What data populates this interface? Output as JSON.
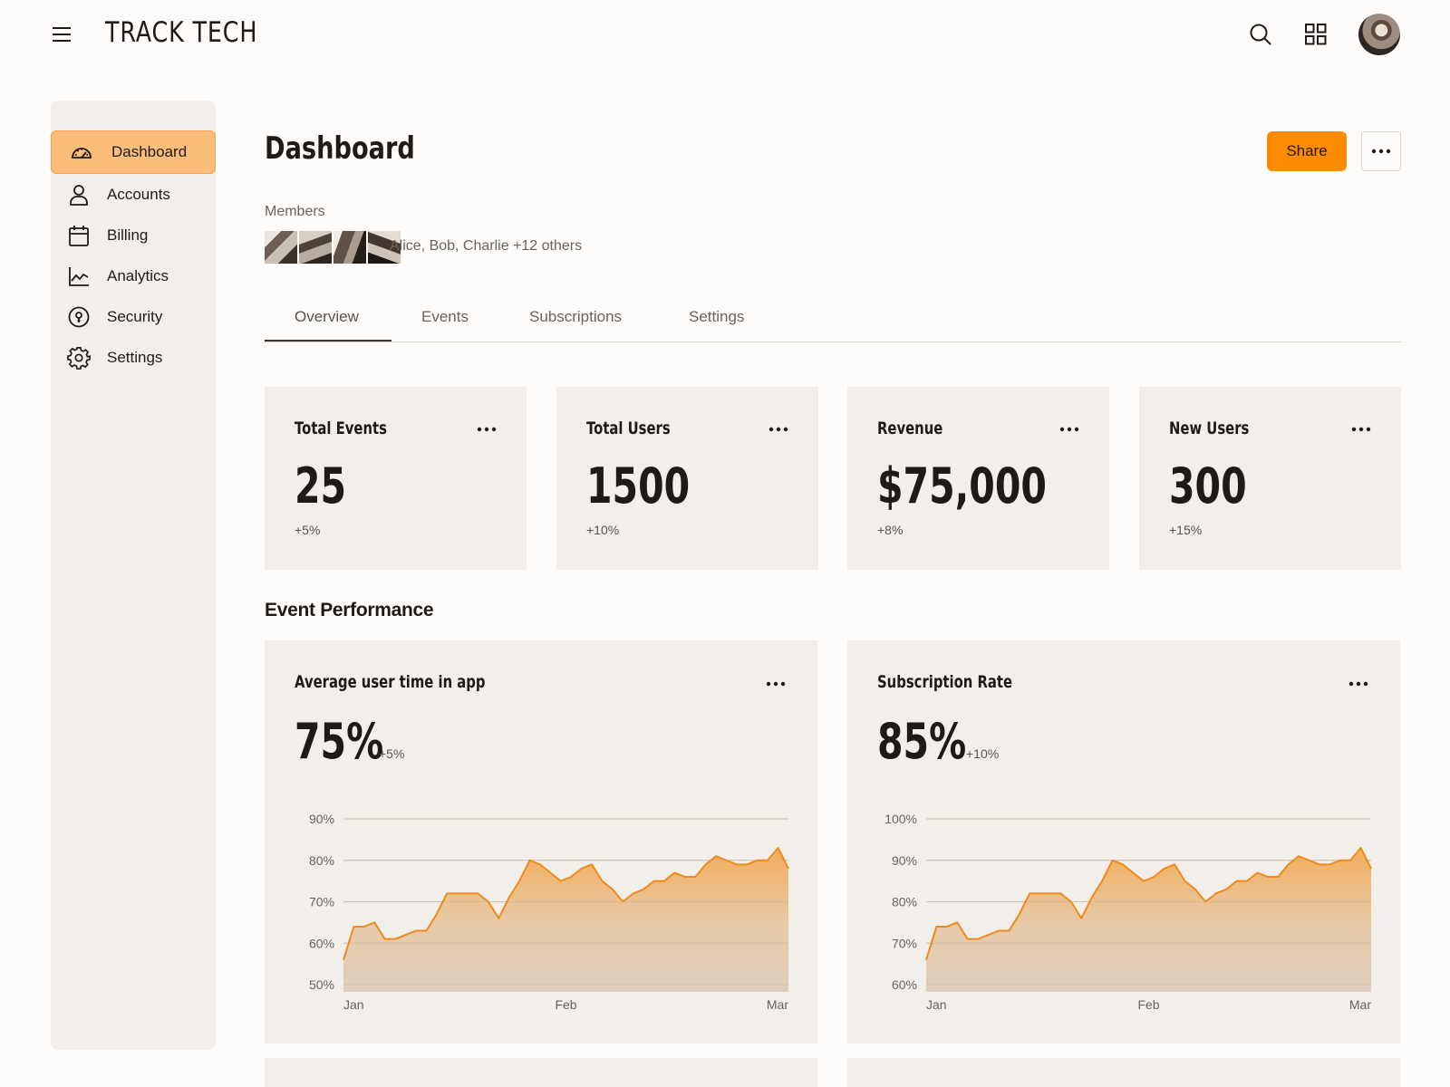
{
  "header": {
    "brand": "TRACK TECH",
    "icons": {
      "menu": "menu-icon",
      "search": "search-icon",
      "apps": "grid-icon",
      "avatar": "avatar"
    }
  },
  "sidebar": {
    "items": [
      {
        "label": "Dashboard",
        "icon": "gauge-icon",
        "active": true
      },
      {
        "label": "Accounts",
        "icon": "user-icon",
        "active": false
      },
      {
        "label": "Billing",
        "icon": "calendar-icon",
        "active": false
      },
      {
        "label": "Analytics",
        "icon": "line-chart-icon",
        "active": false
      },
      {
        "label": "Security",
        "icon": "shield-icon",
        "active": false
      },
      {
        "label": "Settings",
        "icon": "gear-icon",
        "active": false
      }
    ]
  },
  "page": {
    "title": "Dashboard",
    "share_label": "Share",
    "members_label": "Members",
    "members_names": "Alice, Bob, Charlie +12 others"
  },
  "tabs": [
    {
      "label": "Overview",
      "active": true
    },
    {
      "label": "Events",
      "active": false
    },
    {
      "label": "Subscriptions",
      "active": false
    },
    {
      "label": "Settings",
      "active": false
    }
  ],
  "stats": [
    {
      "title": "Total Events",
      "value": "25",
      "delta": "+5%"
    },
    {
      "title": "Total Users",
      "value": "1500",
      "delta": "+10%"
    },
    {
      "title": "Revenue",
      "value": "$75,000",
      "delta": "+8%"
    },
    {
      "title": "New Users",
      "value": "300",
      "delta": "+15%"
    }
  ],
  "section_title": "Event Performance",
  "colors": {
    "accent": "#ff8c00",
    "accent_light": "#fbbe7a",
    "card_bg": "#f2efeb",
    "page_bg": "#fdfcfa"
  },
  "chart_data": [
    {
      "type": "area",
      "title": "Average user time in app",
      "headline": "75%",
      "delta": "+5%",
      "y_ticks": [
        "90%",
        "80%",
        "70%",
        "60%",
        "50%"
      ],
      "ylim": [
        48,
        90
      ],
      "x_ticks": [
        "Jan",
        "Feb",
        "Mar"
      ],
      "values": [
        56,
        64,
        64,
        65,
        61,
        61,
        62,
        63,
        63,
        67,
        72,
        72,
        72,
        72,
        70,
        66,
        71,
        75,
        80,
        79,
        77,
        75,
        76,
        78,
        79,
        75,
        73,
        70,
        72,
        73,
        75,
        75,
        77,
        76,
        76,
        79,
        81,
        80,
        79,
        79,
        80,
        80,
        83,
        78
      ]
    },
    {
      "type": "area",
      "title": "Subscription Rate",
      "headline": "85%",
      "delta": "+10%",
      "y_ticks": [
        "100%",
        "90%",
        "80%",
        "70%",
        "60%"
      ],
      "ylim": [
        58,
        100
      ],
      "x_ticks": [
        "Jan",
        "Feb",
        "Mar"
      ],
      "values": [
        66,
        74,
        74,
        75,
        71,
        71,
        72,
        73,
        73,
        77,
        82,
        82,
        82,
        82,
        80,
        76,
        81,
        85,
        90,
        89,
        87,
        85,
        86,
        88,
        89,
        85,
        83,
        80,
        82,
        83,
        85,
        85,
        87,
        86,
        86,
        89,
        91,
        90,
        89,
        89,
        90,
        90,
        93,
        88
      ]
    }
  ]
}
